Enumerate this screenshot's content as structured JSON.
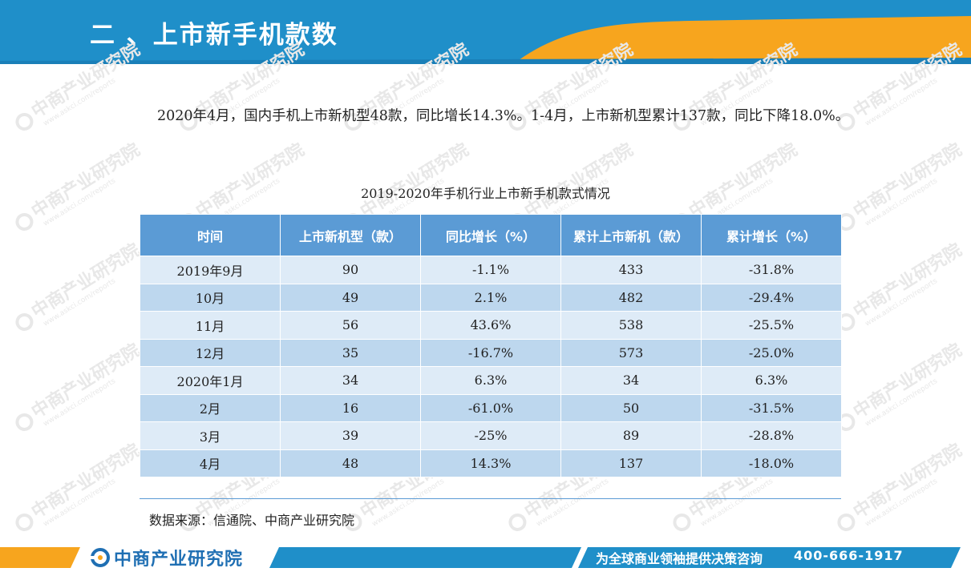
{
  "header": {
    "title": "二 、上市新手机款数"
  },
  "watermark": {
    "brand": "中商产业研究院",
    "url": "www.askci.com/reports"
  },
  "paragraph": "2020年4月，国内手机上市新机型48款，同比增长14.3%。1-4月，上市新机型累计137款，同比下降18.0%。",
  "table": {
    "title": "2019-2020年手机行业上市新手机款式情况",
    "columns": [
      "时间",
      "上市新机型（款）",
      "同比增长（%）",
      "累计上市新机（款）",
      "累计增长（%）"
    ],
    "rows": [
      [
        "2019年9月",
        "90",
        "-1.1%",
        "433",
        "-31.8%"
      ],
      [
        "10月",
        "49",
        "2.1%",
        "482",
        "-29.4%"
      ],
      [
        "11月",
        "56",
        "43.6%",
        "538",
        "-25.5%"
      ],
      [
        "12月",
        "35",
        "-16.7%",
        "573",
        "-25.0%"
      ],
      [
        "2020年1月",
        "34",
        "6.3%",
        "34",
        "6.3%"
      ],
      [
        "2月",
        "16",
        "-61.0%",
        "50",
        "-31.5%"
      ],
      [
        "3月",
        "39",
        "-25%",
        "89",
        "-28.8%"
      ],
      [
        "4月",
        "48",
        "14.3%",
        "137",
        "-18.0%"
      ]
    ],
    "source": "数据来源：信通院、中商产业研究院"
  },
  "footer": {
    "logo_text": "中商产业研究院",
    "slogan": "为全球商业领袖提供决策咨询",
    "phone": "400-666-1917"
  },
  "colors": {
    "header_blue": "#1f8fc9",
    "accent_orange": "#f7a51e",
    "table_header": "#5b9bd5",
    "row_light": "#deebf7",
    "row_dark": "#bdd7ee"
  }
}
